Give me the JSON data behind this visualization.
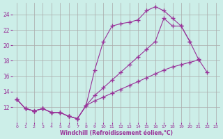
{
  "xlabel": "Windchill (Refroidissement éolien,°C)",
  "bg_color": "#cceee8",
  "line_color": "#993399",
  "grid_color": "#aaaaaa",
  "series1_y": [
    13,
    11.8,
    11.5,
    11.8,
    11.3,
    11.3,
    10.8,
    10.5,
    12.2,
    16.8,
    20.5,
    22.5,
    22.8,
    23.0,
    23.3,
    24.5,
    25.0,
    24.5,
    23.5,
    22.5,
    20.5,
    null,
    null,
    null
  ],
  "series2_y": [
    13,
    11.8,
    11.5,
    11.8,
    11.3,
    11.3,
    10.8,
    10.5,
    12.2,
    12.8,
    13.3,
    13.8,
    14.3,
    14.8,
    15.3,
    15.8,
    16.3,
    16.8,
    17.2,
    17.5,
    17.8,
    18.1,
    null,
    null
  ],
  "series3_y": [
    13,
    11.8,
    11.5,
    11.8,
    11.3,
    11.3,
    10.8,
    10.5,
    12.2,
    13.5,
    14.5,
    15.5,
    16.5,
    17.5,
    18.5,
    19.5,
    20.5,
    23.5,
    22.5,
    22.5,
    20.5,
    18.2,
    16.5,
    null
  ],
  "ylim_min": 10,
  "ylim_max": 25.5,
  "yticks": [
    12,
    14,
    16,
    18,
    20,
    22,
    24
  ],
  "xticks": [
    0,
    1,
    2,
    3,
    4,
    5,
    6,
    7,
    8,
    9,
    10,
    11,
    12,
    13,
    14,
    15,
    16,
    17,
    18,
    19,
    20,
    21,
    22,
    23
  ],
  "marker": "+",
  "ms": 4,
  "lw": 0.8
}
